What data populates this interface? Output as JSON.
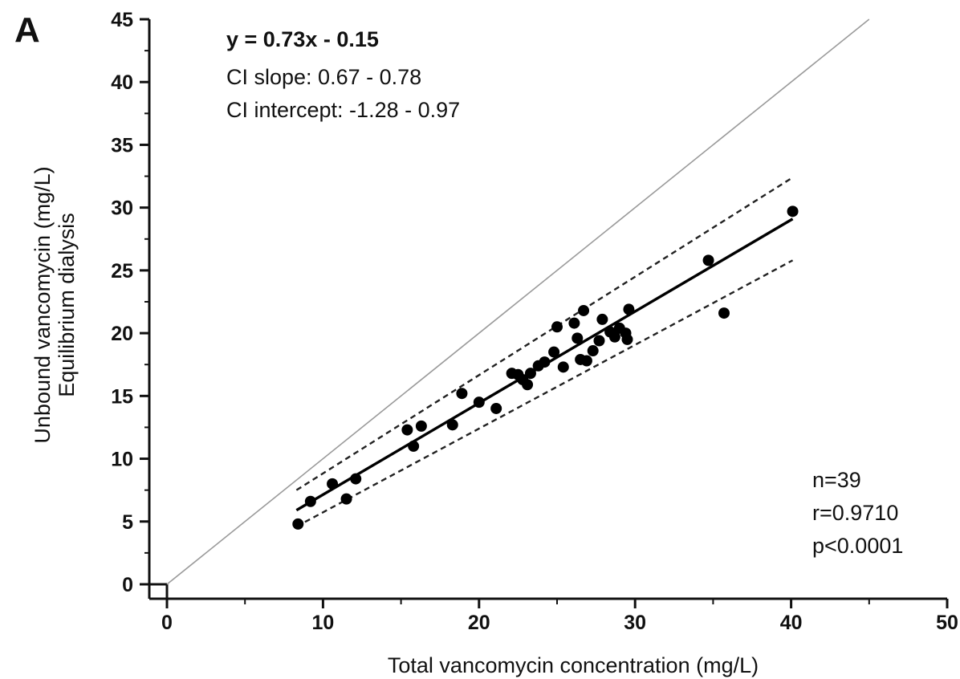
{
  "chart_data": {
    "type": "scatter",
    "panel_label": "A",
    "xlabel": "Total vancomycin concentration (mg/L)",
    "ylabel_lines": [
      "Unbound vancomycin (mg/L)",
      "Equilibrium dialysis"
    ],
    "xlim": [
      0,
      50
    ],
    "ylim": [
      0,
      45
    ],
    "x_ticks": [
      0,
      10,
      20,
      30,
      40,
      50
    ],
    "y_ticks": [
      0,
      5,
      10,
      15,
      20,
      25,
      30,
      35,
      40,
      45
    ],
    "equation": "y = 0.73x - 0.15",
    "annotations": [
      "CI slope: 0.67 - 0.78",
      "CI intercept: -1.28 - 0.97"
    ],
    "stats": [
      "n=39",
      "r=0.9710",
      "p<0.0001"
    ],
    "legend": "none",
    "grid": false,
    "identity_line": {
      "x": [
        0,
        45
      ],
      "y": [
        0,
        45
      ]
    },
    "regression_line": {
      "x": [
        8.3,
        40.1
      ],
      "y": [
        5.9,
        29.1
      ]
    },
    "ci_upper": {
      "x": [
        8.3,
        40.1
      ],
      "y": [
        7.5,
        32.4
      ]
    },
    "ci_lower": {
      "x": [
        8.3,
        40.1
      ],
      "y": [
        4.6,
        25.8
      ]
    },
    "points": [
      {
        "x": 8.4,
        "y": 4.8
      },
      {
        "x": 9.2,
        "y": 6.6
      },
      {
        "x": 10.6,
        "y": 8.0
      },
      {
        "x": 11.5,
        "y": 6.8
      },
      {
        "x": 12.1,
        "y": 8.4
      },
      {
        "x": 15.4,
        "y": 12.3
      },
      {
        "x": 15.8,
        "y": 11.0
      },
      {
        "x": 16.3,
        "y": 12.6
      },
      {
        "x": 18.3,
        "y": 12.7
      },
      {
        "x": 18.9,
        "y": 15.2
      },
      {
        "x": 20.0,
        "y": 14.5
      },
      {
        "x": 21.1,
        "y": 14.0
      },
      {
        "x": 22.1,
        "y": 16.8
      },
      {
        "x": 22.5,
        "y": 16.7
      },
      {
        "x": 22.8,
        "y": 16.3
      },
      {
        "x": 23.1,
        "y": 15.9
      },
      {
        "x": 23.3,
        "y": 16.8
      },
      {
        "x": 23.8,
        "y": 17.4
      },
      {
        "x": 24.2,
        "y": 17.7
      },
      {
        "x": 24.8,
        "y": 18.5
      },
      {
        "x": 25.0,
        "y": 20.5
      },
      {
        "x": 25.4,
        "y": 17.3
      },
      {
        "x": 26.1,
        "y": 20.8
      },
      {
        "x": 26.3,
        "y": 19.6
      },
      {
        "x": 26.5,
        "y": 17.9
      },
      {
        "x": 26.7,
        "y": 21.8
      },
      {
        "x": 26.9,
        "y": 17.8
      },
      {
        "x": 27.3,
        "y": 18.6
      },
      {
        "x": 27.7,
        "y": 19.4
      },
      {
        "x": 27.9,
        "y": 21.1
      },
      {
        "x": 28.4,
        "y": 20.1
      },
      {
        "x": 28.7,
        "y": 19.7
      },
      {
        "x": 29.0,
        "y": 20.4
      },
      {
        "x": 29.4,
        "y": 20.0
      },
      {
        "x": 29.5,
        "y": 19.5
      },
      {
        "x": 29.6,
        "y": 21.9
      },
      {
        "x": 34.7,
        "y": 25.8
      },
      {
        "x": 35.7,
        "y": 21.6
      },
      {
        "x": 40.1,
        "y": 29.7
      }
    ]
  }
}
